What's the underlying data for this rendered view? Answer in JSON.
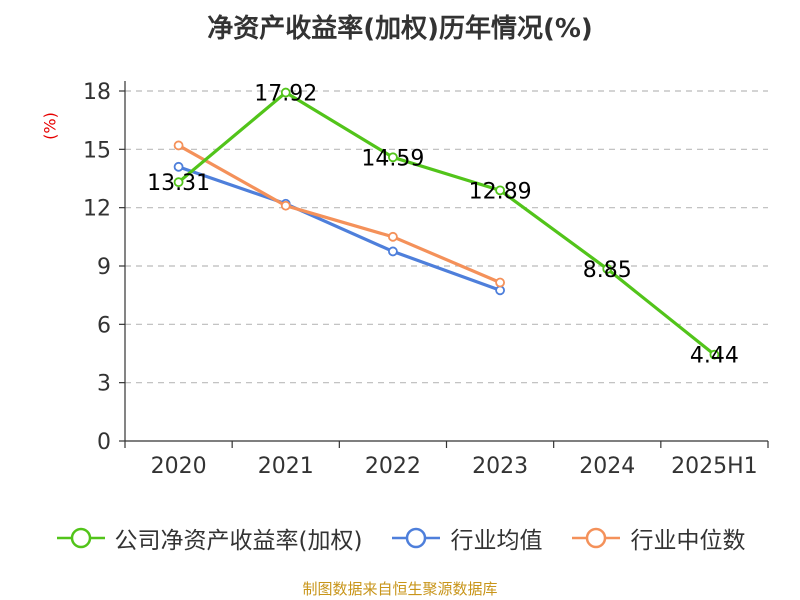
{
  "chart_data": {
    "type": "line",
    "title": "净资产收益率(加权)历年情况(%)",
    "ylabel": "(%)",
    "xlabel": "",
    "categories": [
      "2020",
      "2021",
      "2022",
      "2023",
      "2024",
      "2025H1"
    ],
    "ylim": [
      0,
      18
    ],
    "yticks": [
      0,
      3,
      6,
      9,
      12,
      15,
      18
    ],
    "grid": "horizontal dashed",
    "legend_position": "bottom",
    "series": [
      {
        "name": "公司净资产收益率(加权)",
        "color": "#52c41a",
        "values": [
          13.31,
          17.92,
          14.59,
          12.89,
          8.85,
          4.44
        ],
        "labels": [
          "13.31",
          "17.92",
          "14.59",
          "12.89",
          "8.85",
          "4.44"
        ]
      },
      {
        "name": "行业均值",
        "color": "#4e7fdb",
        "values": [
          14.1,
          12.2,
          9.75,
          7.75,
          null,
          null
        ]
      },
      {
        "name": "行业中位数",
        "color": "#f4915a",
        "values": [
          15.2,
          12.1,
          10.5,
          8.15,
          null,
          null
        ]
      }
    ]
  },
  "source": "制图数据来自恒生聚源数据库"
}
